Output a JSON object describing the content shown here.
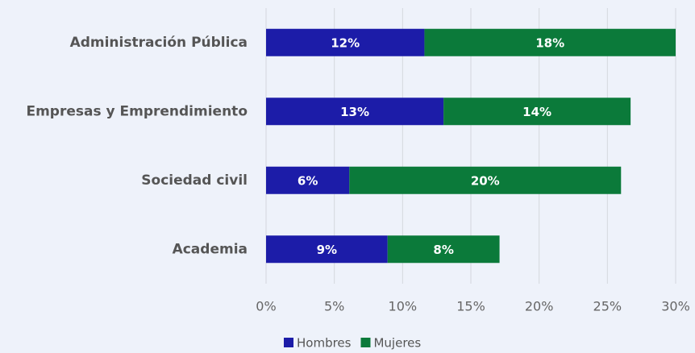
{
  "chart_data": {
    "type": "stacked_barh",
    "categories": [
      "Administración Pública",
      "Empresas y Emprendimiento",
      "Sociedad civil",
      "Academia"
    ],
    "series": [
      {
        "name": "Hombres",
        "color": "#1c1ca8",
        "values": [
          11.6,
          13.0,
          6.1,
          8.9
        ],
        "value_labels": [
          "12%",
          "13%",
          "6%",
          "9%"
        ]
      },
      {
        "name": "Mujeres",
        "color": "#0b7a3a",
        "values": [
          18.4,
          13.7,
          19.9,
          8.2
        ],
        "value_labels": [
          "18%",
          "14%",
          "20%",
          "8%"
        ]
      }
    ],
    "xlim": [
      0,
      30
    ],
    "xticks": [
      {
        "value": 0,
        "label": "0%"
      },
      {
        "value": 5,
        "label": "5%"
      },
      {
        "value": 10,
        "label": "10%"
      },
      {
        "value": 15,
        "label": "15%"
      },
      {
        "value": 20,
        "label": "20%"
      },
      {
        "value": 25,
        "label": "25%"
      },
      {
        "value": 30,
        "label": "30%"
      }
    ],
    "grid": true,
    "legend": "bottom"
  }
}
